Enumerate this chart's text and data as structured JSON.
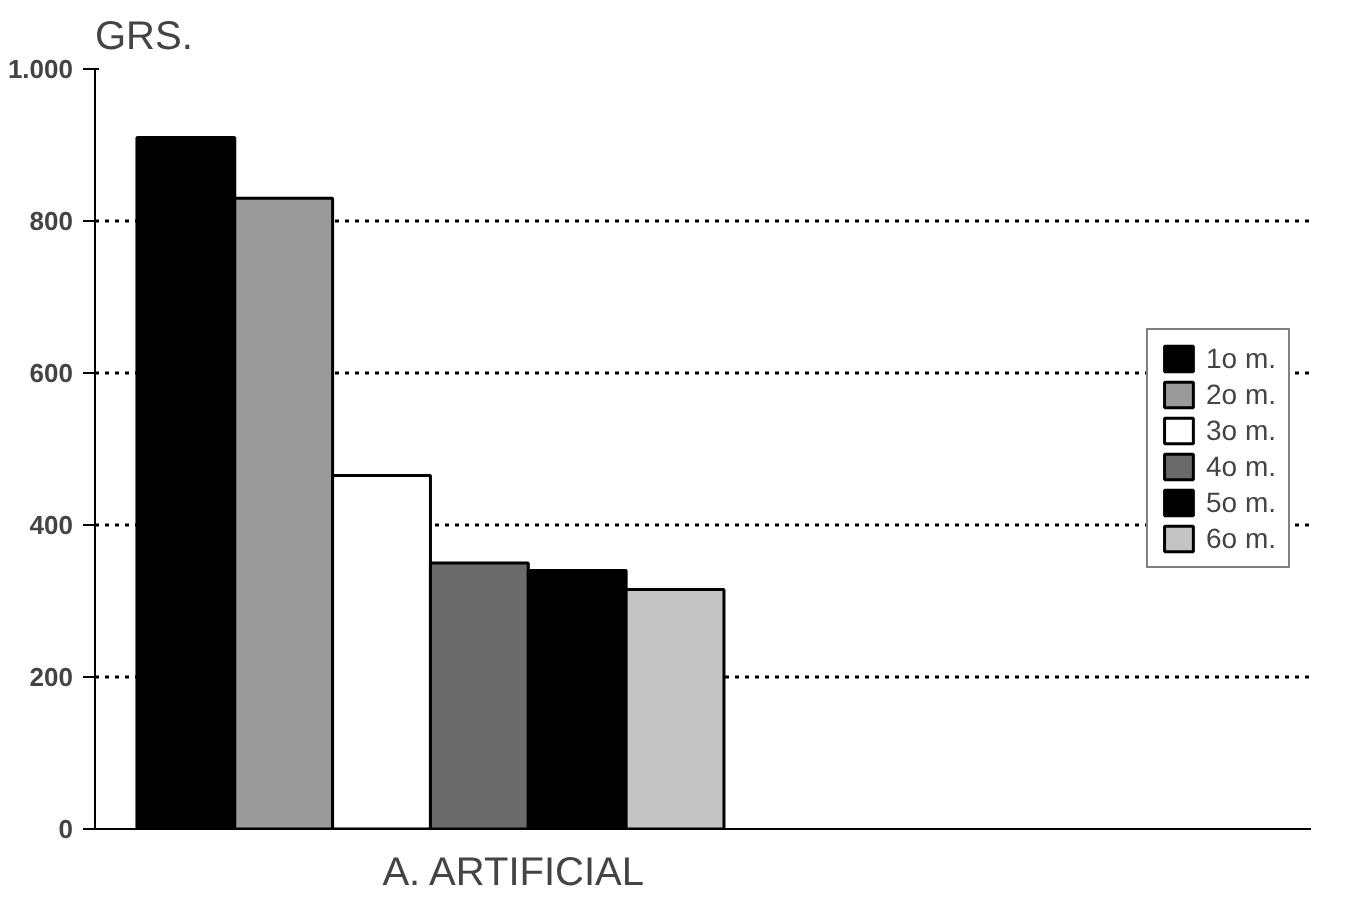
{
  "chart_data": {
    "type": "bar",
    "ylabel": "GRS.",
    "categories": [
      "A. ARTIFICIAL"
    ],
    "series": [
      {
        "name": "1o m.",
        "color": "#000000",
        "values": [
          910
        ]
      },
      {
        "name": "2o m.",
        "color": "#9a9a9a",
        "values": [
          830
        ]
      },
      {
        "name": "3o m.",
        "color": "#ffffff",
        "values": [
          465
        ]
      },
      {
        "name": "4o m.",
        "color": "#6a6a6a",
        "values": [
          350
        ]
      },
      {
        "name": "5o m.",
        "color": "#000000",
        "values": [
          340
        ]
      },
      {
        "name": "6o m.",
        "color": "#c4c4c4",
        "values": [
          315
        ]
      }
    ],
    "ylim": [
      0,
      1000
    ],
    "yticks": [
      0,
      200,
      400,
      600,
      800,
      {
        "value": 1000,
        "label": "1.000"
      }
    ],
    "grid": "y",
    "legend": "right"
  }
}
